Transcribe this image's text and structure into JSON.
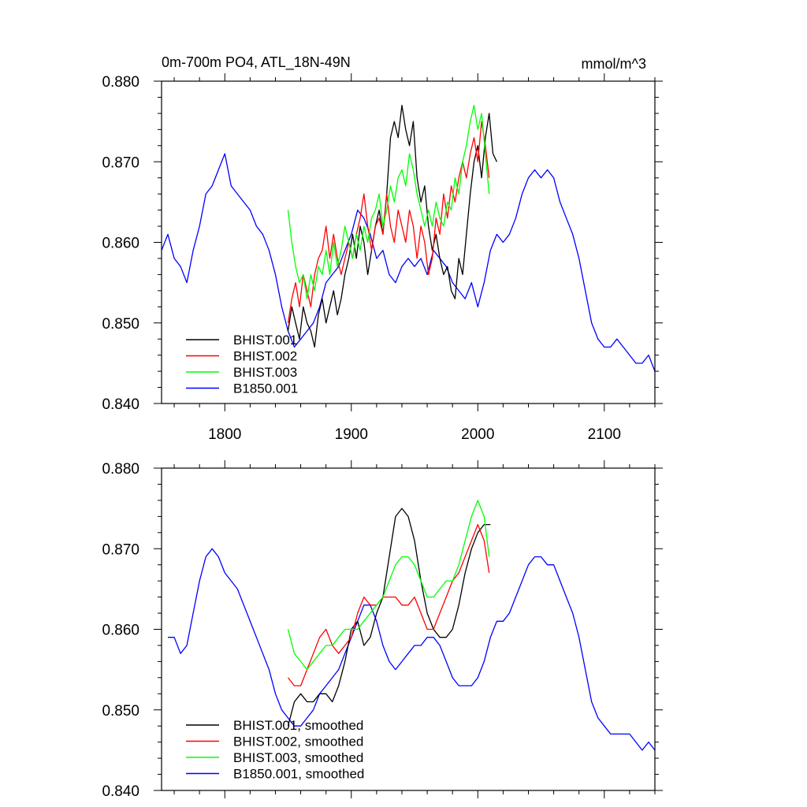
{
  "chart_data": [
    {
      "type": "line",
      "title": "0m-700m PO4, ATL_18N-49N",
      "units_label": "mmol/m^3",
      "xlim": [
        1750,
        2140
      ],
      "ylim": [
        0.84,
        0.88
      ],
      "x_ticks": [
        1800,
        1900,
        2000,
        2100
      ],
      "x_tick_labels": [
        "1800",
        "1900",
        "2000",
        "2100"
      ],
      "y_ticks": [
        0.84,
        0.85,
        0.86,
        0.87,
        0.88
      ],
      "y_tick_labels": [
        "0.840",
        "0.850",
        "0.860",
        "0.870",
        "0.880"
      ],
      "legend_position": "bottom-left",
      "series": [
        {
          "name": "BHIST.001",
          "color": "#000000",
          "x": [
            1850,
            1853,
            1856,
            1859,
            1862,
            1865,
            1868,
            1871,
            1874,
            1877,
            1880,
            1883,
            1886,
            1889,
            1892,
            1895,
            1898,
            1901,
            1904,
            1907,
            1910,
            1913,
            1916,
            1919,
            1922,
            1925,
            1928,
            1931,
            1934,
            1937,
            1940,
            1943,
            1946,
            1949,
            1952,
            1955,
            1958,
            1961,
            1964,
            1967,
            1970,
            1973,
            1976,
            1979,
            1982,
            1985,
            1988,
            1991,
            1994,
            1997,
            2000,
            2003,
            2006,
            2009,
            2012,
            2015
          ],
          "y": [
            0.849,
            0.852,
            0.85,
            0.848,
            0.852,
            0.85,
            0.849,
            0.847,
            0.851,
            0.853,
            0.85,
            0.852,
            0.854,
            0.851,
            0.853,
            0.856,
            0.858,
            0.861,
            0.858,
            0.862,
            0.86,
            0.856,
            0.859,
            0.862,
            0.864,
            0.861,
            0.866,
            0.873,
            0.875,
            0.873,
            0.877,
            0.874,
            0.872,
            0.875,
            0.868,
            0.865,
            0.867,
            0.862,
            0.859,
            0.861,
            0.858,
            0.856,
            0.857,
            0.854,
            0.853,
            0.858,
            0.856,
            0.861,
            0.866,
            0.87,
            0.872,
            0.868,
            0.873,
            0.876,
            0.871,
            0.87
          ]
        },
        {
          "name": "BHIST.002",
          "color": "#ff0000",
          "x": [
            1850,
            1853,
            1856,
            1859,
            1862,
            1865,
            1868,
            1871,
            1874,
            1877,
            1880,
            1883,
            1886,
            1889,
            1892,
            1895,
            1898,
            1901,
            1904,
            1907,
            1910,
            1913,
            1916,
            1919,
            1922,
            1925,
            1928,
            1931,
            1934,
            1937,
            1940,
            1943,
            1946,
            1949,
            1952,
            1955,
            1958,
            1961,
            1964,
            1967,
            1970,
            1973,
            1976,
            1979,
            1982,
            1985,
            1988,
            1991,
            1994,
            1997,
            2000,
            2003,
            2006,
            2009
          ],
          "y": [
            0.85,
            0.853,
            0.855,
            0.852,
            0.856,
            0.854,
            0.852,
            0.856,
            0.858,
            0.859,
            0.862,
            0.858,
            0.861,
            0.858,
            0.856,
            0.858,
            0.86,
            0.858,
            0.861,
            0.863,
            0.866,
            0.862,
            0.859,
            0.862,
            0.863,
            0.861,
            0.866,
            0.862,
            0.86,
            0.864,
            0.862,
            0.86,
            0.864,
            0.862,
            0.858,
            0.862,
            0.86,
            0.856,
            0.858,
            0.863,
            0.861,
            0.866,
            0.863,
            0.867,
            0.865,
            0.868,
            0.87,
            0.868,
            0.871,
            0.873,
            0.87,
            0.875,
            0.872,
            0.868
          ]
        },
        {
          "name": "BHIST.003",
          "color": "#00ff00",
          "x": [
            1850,
            1853,
            1856,
            1859,
            1862,
            1865,
            1868,
            1871,
            1874,
            1877,
            1880,
            1883,
            1886,
            1889,
            1892,
            1895,
            1898,
            1901,
            1904,
            1907,
            1910,
            1913,
            1916,
            1919,
            1922,
            1925,
            1928,
            1931,
            1934,
            1937,
            1940,
            1943,
            1946,
            1949,
            1952,
            1955,
            1958,
            1961,
            1964,
            1967,
            1970,
            1973,
            1976,
            1979,
            1982,
            1985,
            1988,
            1991,
            1994,
            1997,
            2000,
            2003,
            2006,
            2009
          ],
          "y": [
            0.864,
            0.86,
            0.857,
            0.855,
            0.856,
            0.853,
            0.856,
            0.854,
            0.857,
            0.856,
            0.859,
            0.856,
            0.86,
            0.857,
            0.859,
            0.862,
            0.86,
            0.858,
            0.861,
            0.859,
            0.862,
            0.86,
            0.863,
            0.864,
            0.866,
            0.862,
            0.864,
            0.867,
            0.865,
            0.868,
            0.869,
            0.867,
            0.871,
            0.869,
            0.866,
            0.864,
            0.862,
            0.864,
            0.862,
            0.865,
            0.863,
            0.862,
            0.865,
            0.864,
            0.868,
            0.866,
            0.87,
            0.872,
            0.875,
            0.877,
            0.874,
            0.876,
            0.871,
            0.866
          ]
        },
        {
          "name": "B1850.001",
          "color": "#0000ff",
          "x": [
            1750,
            1755,
            1760,
            1765,
            1770,
            1775,
            1780,
            1785,
            1790,
            1795,
            1800,
            1805,
            1810,
            1815,
            1820,
            1825,
            1830,
            1835,
            1840,
            1845,
            1850,
            1855,
            1860,
            1865,
            1870,
            1875,
            1880,
            1885,
            1890,
            1895,
            1900,
            1905,
            1910,
            1915,
            1920,
            1925,
            1930,
            1935,
            1940,
            1945,
            1950,
            1955,
            1960,
            1965,
            1970,
            1975,
            1980,
            1985,
            1990,
            1995,
            2000,
            2005,
            2010,
            2015,
            2020,
            2025,
            2030,
            2035,
            2040,
            2045,
            2050,
            2055,
            2060,
            2065,
            2070,
            2075,
            2080,
            2085,
            2090,
            2095,
            2100,
            2105,
            2110,
            2115,
            2120,
            2125,
            2130,
            2135,
            2140
          ],
          "y": [
            0.859,
            0.861,
            0.858,
            0.857,
            0.855,
            0.859,
            0.862,
            0.866,
            0.867,
            0.869,
            0.871,
            0.867,
            0.866,
            0.865,
            0.864,
            0.862,
            0.861,
            0.859,
            0.856,
            0.852,
            0.849,
            0.847,
            0.848,
            0.849,
            0.85,
            0.852,
            0.855,
            0.856,
            0.857,
            0.859,
            0.861,
            0.864,
            0.863,
            0.861,
            0.858,
            0.859,
            0.856,
            0.855,
            0.857,
            0.858,
            0.857,
            0.858,
            0.856,
            0.859,
            0.858,
            0.857,
            0.855,
            0.854,
            0.853,
            0.855,
            0.852,
            0.855,
            0.859,
            0.861,
            0.86,
            0.861,
            0.863,
            0.866,
            0.868,
            0.869,
            0.868,
            0.869,
            0.868,
            0.865,
            0.863,
            0.861,
            0.858,
            0.854,
            0.85,
            0.848,
            0.847,
            0.847,
            0.848,
            0.847,
            0.846,
            0.845,
            0.845,
            0.846,
            0.844
          ]
        }
      ]
    },
    {
      "type": "line",
      "title": "",
      "xlim": [
        1750,
        2140
      ],
      "ylim": [
        0.84,
        0.88
      ],
      "x_ticks": [
        1800,
        1900,
        2000,
        2100
      ],
      "y_ticks": [
        0.84,
        0.85,
        0.86,
        0.87,
        0.88
      ],
      "y_tick_labels": [
        "0.840",
        "0.850",
        "0.860",
        "0.870",
        "0.880"
      ],
      "legend_position": "bottom-left",
      "series": [
        {
          "name": "BHIST.001, smoothed",
          "color": "#000000",
          "x": [
            1850,
            1855,
            1860,
            1865,
            1870,
            1875,
            1880,
            1885,
            1890,
            1895,
            1900,
            1905,
            1910,
            1915,
            1920,
            1925,
            1930,
            1935,
            1940,
            1945,
            1950,
            1955,
            1960,
            1965,
            1970,
            1975,
            1980,
            1985,
            1990,
            1995,
            2000,
            2005,
            2010
          ],
          "y": [
            0.848,
            0.851,
            0.852,
            0.851,
            0.851,
            0.852,
            0.852,
            0.851,
            0.853,
            0.856,
            0.86,
            0.861,
            0.858,
            0.859,
            0.862,
            0.864,
            0.869,
            0.874,
            0.875,
            0.874,
            0.871,
            0.866,
            0.862,
            0.86,
            0.859,
            0.859,
            0.86,
            0.863,
            0.867,
            0.87,
            0.872,
            0.873,
            0.873
          ]
        },
        {
          "name": "BHIST.002, smoothed",
          "color": "#ff0000",
          "x": [
            1850,
            1855,
            1860,
            1865,
            1870,
            1875,
            1880,
            1885,
            1890,
            1895,
            1900,
            1905,
            1910,
            1915,
            1920,
            1925,
            1930,
            1935,
            1940,
            1945,
            1950,
            1955,
            1960,
            1965,
            1970,
            1975,
            1980,
            1985,
            1990,
            1995,
            2000,
            2005,
            2009
          ],
          "y": [
            0.854,
            0.853,
            0.853,
            0.855,
            0.857,
            0.859,
            0.86,
            0.858,
            0.857,
            0.858,
            0.859,
            0.862,
            0.864,
            0.863,
            0.863,
            0.864,
            0.864,
            0.864,
            0.863,
            0.863,
            0.864,
            0.862,
            0.86,
            0.86,
            0.862,
            0.864,
            0.866,
            0.867,
            0.869,
            0.871,
            0.873,
            0.871,
            0.867
          ]
        },
        {
          "name": "BHIST.003, smoothed",
          "color": "#00ff00",
          "x": [
            1850,
            1855,
            1860,
            1865,
            1870,
            1875,
            1880,
            1885,
            1890,
            1895,
            1900,
            1905,
            1910,
            1915,
            1920,
            1925,
            1930,
            1935,
            1940,
            1945,
            1950,
            1955,
            1960,
            1965,
            1970,
            1975,
            1980,
            1985,
            1990,
            1995,
            2000,
            2005,
            2009
          ],
          "y": [
            0.86,
            0.857,
            0.856,
            0.855,
            0.856,
            0.857,
            0.858,
            0.858,
            0.859,
            0.86,
            0.86,
            0.86,
            0.861,
            0.862,
            0.863,
            0.864,
            0.866,
            0.868,
            0.869,
            0.869,
            0.868,
            0.866,
            0.864,
            0.864,
            0.865,
            0.866,
            0.866,
            0.868,
            0.871,
            0.874,
            0.876,
            0.874,
            0.869
          ]
        },
        {
          "name": "B1850.001, smoothed",
          "color": "#0000ff",
          "x": [
            1755,
            1760,
            1765,
            1770,
            1775,
            1780,
            1785,
            1790,
            1795,
            1800,
            1805,
            1810,
            1815,
            1820,
            1825,
            1830,
            1835,
            1840,
            1845,
            1850,
            1855,
            1860,
            1865,
            1870,
            1875,
            1880,
            1885,
            1890,
            1895,
            1900,
            1905,
            1910,
            1915,
            1920,
            1925,
            1930,
            1935,
            1940,
            1945,
            1950,
            1955,
            1960,
            1965,
            1970,
            1975,
            1980,
            1985,
            1990,
            1995,
            2000,
            2005,
            2010,
            2015,
            2020,
            2025,
            2030,
            2035,
            2040,
            2045,
            2050,
            2055,
            2060,
            2065,
            2070,
            2075,
            2080,
            2085,
            2090,
            2095,
            2100,
            2105,
            2110,
            2115,
            2120,
            2125,
            2130,
            2135,
            2140
          ],
          "y": [
            0.859,
            0.859,
            0.857,
            0.858,
            0.862,
            0.866,
            0.869,
            0.87,
            0.869,
            0.867,
            0.866,
            0.865,
            0.863,
            0.861,
            0.859,
            0.857,
            0.855,
            0.852,
            0.85,
            0.849,
            0.848,
            0.848,
            0.849,
            0.85,
            0.852,
            0.853,
            0.854,
            0.855,
            0.857,
            0.859,
            0.861,
            0.863,
            0.863,
            0.861,
            0.858,
            0.856,
            0.855,
            0.856,
            0.857,
            0.858,
            0.858,
            0.859,
            0.859,
            0.858,
            0.856,
            0.854,
            0.853,
            0.853,
            0.853,
            0.854,
            0.856,
            0.859,
            0.861,
            0.861,
            0.862,
            0.864,
            0.866,
            0.868,
            0.869,
            0.869,
            0.868,
            0.868,
            0.866,
            0.864,
            0.862,
            0.859,
            0.855,
            0.851,
            0.849,
            0.848,
            0.847,
            0.847,
            0.847,
            0.847,
            0.846,
            0.845,
            0.846,
            0.845
          ]
        }
      ]
    }
  ]
}
